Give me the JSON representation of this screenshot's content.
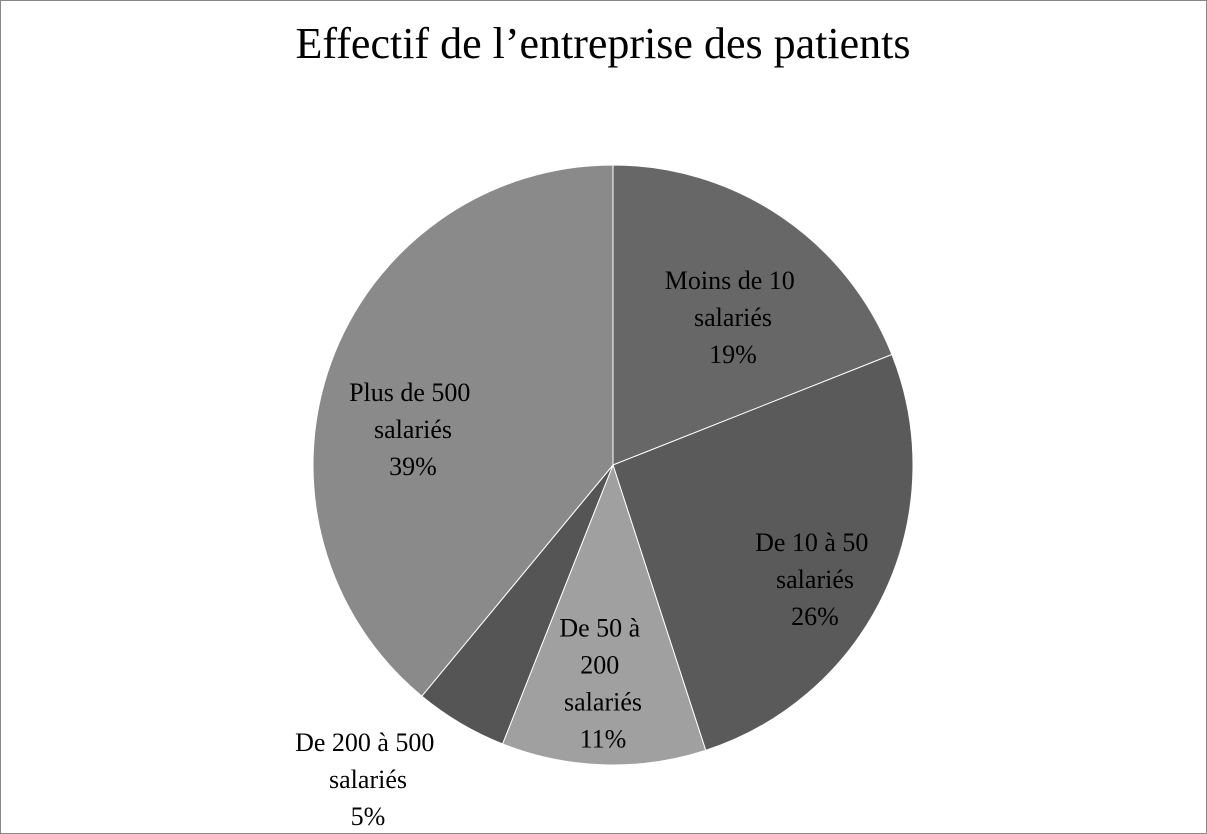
{
  "chart_data": {
    "type": "pie",
    "title": "Effectif de l’entreprise des patients",
    "categories": [
      "Moins de 10 salariés",
      "De 10 à 50 salariés",
      "De 50 à 200 salariés",
      "De 200 à 500 salariés",
      "Plus de 500 salariés"
    ],
    "values": [
      19,
      26,
      11,
      5,
      39
    ],
    "value_labels": [
      "19%",
      "26%",
      "11%",
      "5%",
      "39%"
    ],
    "colors": [
      "#676767",
      "#5a5a5a",
      "#a0a0a0",
      "#555555",
      "#8a8a8a"
    ]
  }
}
